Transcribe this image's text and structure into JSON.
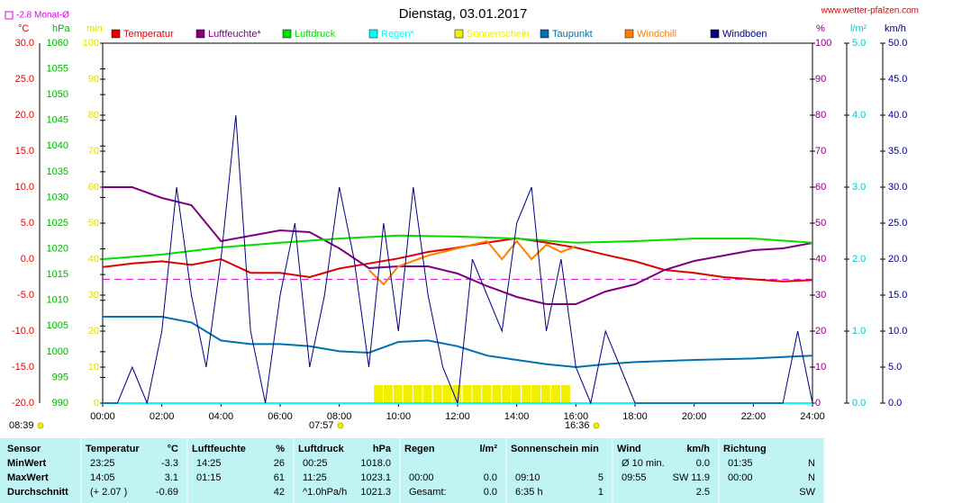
{
  "chart_data": {
    "type": "line",
    "title": "Dienstag, 03.01.2017",
    "source": "www.wetter-pfalzen.com",
    "month_avg": {
      "value": -2.8,
      "label": "-2.8 Monat-Ø",
      "color": "#e000e0"
    },
    "xlim": [
      0,
      24
    ],
    "xticks": [
      {
        "value": 0,
        "label": "00:00"
      },
      {
        "value": 2,
        "label": "02:00"
      },
      {
        "value": 4,
        "label": "04:00"
      },
      {
        "value": 6,
        "label": "06:00"
      },
      {
        "value": 8,
        "label": "08:00"
      },
      {
        "value": 10,
        "label": "10:00"
      },
      {
        "value": 12,
        "label": "12:00"
      },
      {
        "value": 14,
        "label": "14:00"
      },
      {
        "value": 16,
        "label": "16:00"
      },
      {
        "value": 18,
        "label": "18:00"
      },
      {
        "value": 20,
        "label": "20:00"
      },
      {
        "value": 22,
        "label": "22:00"
      },
      {
        "value": 24,
        "label": "24:00"
      }
    ],
    "axes": [
      {
        "unit": "°C",
        "color": "#e00000",
        "lim": [
          -20,
          30
        ],
        "ticks": [
          {
            "value": -20,
            "label": "-20.0"
          },
          {
            "value": -15,
            "label": "-15.0"
          },
          {
            "value": -10,
            "label": "-10.0"
          },
          {
            "value": -5,
            "label": "-5.0"
          },
          {
            "value": 0,
            "label": "0.0"
          },
          {
            "value": 5,
            "label": "5.0"
          },
          {
            "value": 10,
            "label": "10.0"
          },
          {
            "value": 15,
            "label": "15.0"
          },
          {
            "value": 20,
            "label": "20.0"
          },
          {
            "value": 25,
            "label": "25.0"
          },
          {
            "value": 30,
            "label": "30.0"
          }
        ]
      },
      {
        "unit": "hPa",
        "color": "#00b000",
        "lim": [
          990,
          1060
        ],
        "ticks": [
          990,
          995,
          1000,
          1005,
          1010,
          1015,
          1020,
          1025,
          1030,
          1035,
          1040,
          1045,
          1050,
          1055,
          1060
        ]
      },
      {
        "unit": "min",
        "color": "#e0e000",
        "lim": [
          0,
          100
        ],
        "ticks": [
          0,
          10,
          20,
          30,
          40,
          50,
          60,
          70,
          80,
          90,
          100
        ]
      },
      {
        "unit": "%",
        "color": "#800080",
        "lim": [
          0,
          100
        ],
        "ticks": [
          0,
          10,
          20,
          30,
          40,
          50,
          60,
          70,
          80,
          90,
          100
        ]
      },
      {
        "unit": "l/m²",
        "color": "#00c8d0",
        "lim": [
          0,
          5
        ],
        "ticks": [
          {
            "value": 0,
            "label": "0.0"
          },
          {
            "value": 1,
            "label": "1.0"
          },
          {
            "value": 2,
            "label": "2.0"
          },
          {
            "value": 3,
            "label": "3.0"
          },
          {
            "value": 4,
            "label": "4.0"
          },
          {
            "value": 5,
            "label": "5.0"
          }
        ]
      },
      {
        "unit": "km/h",
        "color": "#000080",
        "lim": [
          0,
          50
        ],
        "ticks": [
          {
            "value": 0,
            "label": "0.0"
          },
          {
            "value": 5,
            "label": "5.0"
          },
          {
            "value": 10,
            "label": "10.0"
          },
          {
            "value": 15,
            "label": "15.0"
          },
          {
            "value": 20,
            "label": "20.0"
          },
          {
            "value": 25,
            "label": "25.0"
          },
          {
            "value": 30,
            "label": "30.0"
          },
          {
            "value": 35,
            "label": "35.0"
          },
          {
            "value": 40,
            "label": "40.0"
          },
          {
            "value": 45,
            "label": "45.0"
          },
          {
            "value": 50,
            "label": "50.0"
          }
        ]
      }
    ],
    "series": [
      {
        "name": "Temperatur",
        "color": "#e00000",
        "axis": 0,
        "kind": "line",
        "x": [
          0,
          1,
          2,
          3,
          4,
          5,
          6,
          7,
          8,
          9,
          10,
          11,
          12,
          13,
          14,
          15,
          16,
          17,
          18,
          19,
          20,
          21,
          22,
          23,
          24
        ],
        "values": [
          -1.1,
          -0.6,
          -0.3,
          -0.8,
          0,
          -1.9,
          -1.9,
          -2.5,
          -1.3,
          -0.6,
          0.1,
          1,
          1.6,
          2.3,
          2.9,
          2.3,
          1.6,
          0.6,
          -0.3,
          -1.5,
          -1.9,
          -2.5,
          -2.8,
          -3.1,
          -2.9
        ]
      },
      {
        "name": "Luftfeuchte*",
        "color": "#800080",
        "axis": 3,
        "kind": "line",
        "x": [
          0,
          1,
          2,
          3,
          4,
          5,
          6,
          7,
          8,
          9,
          10,
          11,
          12,
          13,
          14,
          15,
          16,
          17,
          18,
          19,
          20,
          21,
          22,
          23,
          24
        ],
        "values": [
          60,
          60,
          57,
          55,
          45,
          46.5,
          48,
          47.5,
          43,
          37.5,
          38,
          38,
          36,
          32.5,
          29.5,
          27.5,
          27.5,
          31,
          33,
          37,
          39.5,
          41,
          42.5,
          43,
          44.5
        ]
      },
      {
        "name": "Luftdruck",
        "color": "#00e000",
        "axis": 1,
        "kind": "line",
        "x": [
          0,
          2,
          4,
          6,
          8,
          10,
          12,
          14,
          16,
          18,
          20,
          22,
          24
        ],
        "values": [
          1018,
          1018.9,
          1020.3,
          1021.2,
          1022,
          1022.6,
          1022.4,
          1022,
          1021.2,
          1021.5,
          1022,
          1022,
          1021.2
        ]
      },
      {
        "name": "Regen*",
        "color": "#00ffff",
        "axis": 4,
        "kind": "line",
        "x": [
          0,
          24
        ],
        "values": [
          0,
          0
        ]
      },
      {
        "name": "Sonnenschein",
        "color": "#f0f000",
        "axis": 2,
        "kind": "bar",
        "x": [
          9.17,
          9.5,
          9.83,
          10.17,
          10.5,
          10.83,
          11.17,
          11.5,
          11.83,
          12.17,
          12.5,
          12.83,
          13.17,
          13.5,
          13.83,
          14.17,
          14.5,
          14.83,
          15.17,
          15.5
        ],
        "values": [
          5,
          5,
          5,
          5,
          5,
          5,
          5,
          5,
          5,
          5,
          5,
          5,
          5,
          5,
          5,
          5,
          5,
          5,
          5,
          5
        ]
      },
      {
        "name": "Taupunkt",
        "color": "#0070b0",
        "axis": 0,
        "kind": "line",
        "x": [
          0,
          2,
          3,
          4,
          5,
          6,
          7,
          8,
          9,
          10,
          11,
          12,
          13,
          14,
          15,
          16,
          17,
          18,
          20,
          22,
          24
        ],
        "values": [
          -8,
          -8,
          -8.8,
          -11.3,
          -11.8,
          -11.8,
          -12.1,
          -12.8,
          -13,
          -11.5,
          -11.3,
          -12.1,
          -13.4,
          -14,
          -14.6,
          -15,
          -14.6,
          -14.3,
          -14,
          -13.8,
          -13.4
        ]
      },
      {
        "name": "Windchill",
        "color": "#ff8000",
        "axis": 0,
        "kind": "line",
        "x": [
          9,
          9.5,
          10,
          11,
          12,
          13,
          13.5,
          14,
          14.5,
          15,
          15.5,
          16
        ],
        "values": [
          -1.5,
          -3.5,
          -1,
          0.5,
          1.5,
          2.5,
          0,
          2.5,
          0,
          2,
          1,
          1.8
        ]
      },
      {
        "name": "Windböen",
        "color": "#000080",
        "axis": 5,
        "kind": "line",
        "x": [
          0,
          0.5,
          1,
          1.5,
          2,
          2.5,
          3,
          3.5,
          4,
          4.5,
          5,
          5.5,
          6,
          6.5,
          7,
          7.5,
          8,
          8.5,
          9,
          9.5,
          10,
          10.5,
          11,
          11.5,
          12,
          12.5,
          13,
          13.5,
          14,
          14.5,
          15,
          15.5,
          16,
          16.5,
          17,
          17.5,
          18,
          18.5,
          19,
          19.5,
          20,
          20.5,
          21,
          21.5,
          22,
          22.5,
          23,
          23.5,
          24
        ],
        "values": [
          0,
          0,
          5,
          0,
          10,
          30,
          15,
          5,
          20,
          40,
          10,
          0,
          15,
          25,
          5,
          15,
          30,
          20,
          5,
          25,
          10,
          30,
          15,
          5,
          0,
          20,
          15,
          10,
          25,
          30,
          10,
          20,
          5,
          0,
          10,
          5,
          0,
          0,
          0,
          0,
          0,
          0,
          0,
          0,
          0,
          0,
          0,
          10,
          0
        ]
      }
    ],
    "markers": [
      {
        "label": "08:39"
      },
      {
        "label": "07:57"
      },
      {
        "label": "16:36"
      }
    ]
  },
  "table": {
    "rows": [
      [
        "Sensor",
        "Temperatur",
        "°C",
        "Luftfeuchte",
        "%",
        "Luftdruck",
        "hPa",
        "Regen",
        "l/m²",
        "Sonnenschein min",
        null,
        "Wind",
        "km/h",
        "Richtung",
        null
      ],
      [
        "MinWert",
        "23:25",
        "-3.3",
        "14:25",
        "26",
        "00:25",
        "1018.0",
        null,
        null,
        null,
        null,
        "Ø 10 min.",
        "0.0",
        "01:35",
        "N"
      ],
      [
        "MaxWert",
        "14:05",
        "3.1",
        "01:15",
        "61",
        "11:25",
        "1023.1",
        "00:00",
        "0.0",
        "09:10",
        "5",
        "09:55",
        "SW 11.9",
        "00:00",
        "N"
      ],
      [
        "Durchschnitt",
        "(+ 2.07 )",
        "-0.69",
        null,
        "42",
        "^1.0hPa/h",
        "1021.3",
        "Gesamt:",
        "0.0",
        "6:35 h",
        "1",
        null,
        "2.5",
        null,
        "SW"
      ]
    ]
  }
}
